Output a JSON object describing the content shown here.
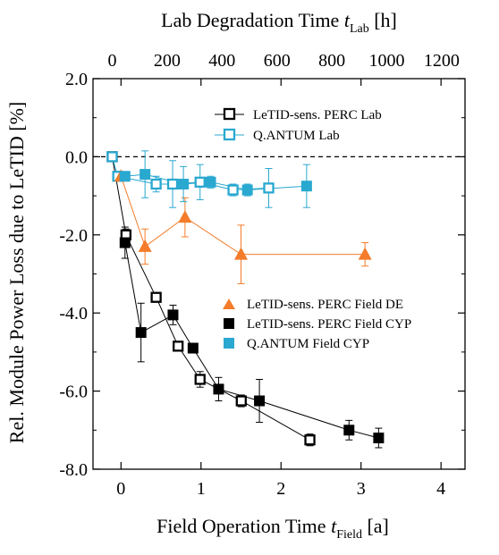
{
  "chart_data": {
    "type": "scatter",
    "title": "",
    "x_bottom": {
      "label_main": "Field Operation Time ",
      "label_var": "t",
      "label_sub": "Field",
      "label_unit": " [a]",
      "range": [
        -0.35,
        4.3
      ],
      "ticks": [
        "0",
        "1",
        "2",
        "3",
        "4"
      ]
    },
    "x_top": {
      "label_main": "Lab Degradation Time ",
      "label_var": "t",
      "label_sub": "Lab",
      "label_unit": " [h]",
      "range": [
        -70,
        1285
      ],
      "ticks": [
        "0",
        "200",
        "400",
        "600",
        "800",
        "1000",
        "1200"
      ]
    },
    "y": {
      "label": "Rel. Module Power Loss due to LeTID [%]",
      "range": [
        -8.0,
        2.0
      ],
      "ticks": [
        "2.0",
        "0.0",
        "-2.0",
        "-4.0",
        "-6.0",
        "-8.0"
      ]
    },
    "reference_line_y": 0.0,
    "series": [
      {
        "name": "LeTID-sens. PERC Lab",
        "axis": "top",
        "marker": "square-open",
        "color": "#000000",
        "points": [
          {
            "x": 0,
            "y": 0.0,
            "err": 0
          },
          {
            "x": 50,
            "y": -2.0,
            "err": 0.15
          },
          {
            "x": 160,
            "y": -3.6,
            "err": 0
          },
          {
            "x": 240,
            "y": -4.85,
            "err": 0.1
          },
          {
            "x": 320,
            "y": -5.7,
            "err": 0.2
          },
          {
            "x": 470,
            "y": -6.25,
            "err": 0.15
          },
          {
            "x": 720,
            "y": -7.25,
            "err": 0.15
          }
        ]
      },
      {
        "name": "Q.ANTUM Lab",
        "axis": "top",
        "marker": "square-open",
        "color": "#29a8d0",
        "points": [
          {
            "x": 0,
            "y": 0.0,
            "err": 0
          },
          {
            "x": 20,
            "y": -0.5,
            "err": 0.1
          },
          {
            "x": 160,
            "y": -0.7,
            "err": 0.2
          },
          {
            "x": 220,
            "y": -0.7,
            "err": 0.6
          },
          {
            "x": 320,
            "y": -0.65,
            "err": 0.45
          },
          {
            "x": 440,
            "y": -0.85,
            "err": 0.15
          },
          {
            "x": 570,
            "y": -0.8,
            "err": 0.5
          }
        ]
      },
      {
        "name": "LeTID-sens. PERC Field DE",
        "axis": "bottom",
        "marker": "triangle-filled",
        "color": "#f47c2a",
        "points": [
          {
            "x": 0.0,
            "y": -0.5,
            "err": 0
          },
          {
            "x": 0.3,
            "y": -2.3,
            "err": 0.45
          },
          {
            "x": 0.8,
            "y": -1.55,
            "err": 0.5
          },
          {
            "x": 1.5,
            "y": -2.5,
            "err": 0.75
          },
          {
            "x": 3.05,
            "y": -2.5,
            "err": 0.3
          }
        ]
      },
      {
        "name": "LeTID-sens. PERC Field CYP",
        "axis": "bottom",
        "marker": "square-filled",
        "color": "#000000",
        "points": [
          {
            "x": 0.05,
            "y": -2.2,
            "err": 0.4
          },
          {
            "x": 0.25,
            "y": -4.5,
            "err": 0.75
          },
          {
            "x": 0.65,
            "y": -4.05,
            "err": 0.25
          },
          {
            "x": 0.9,
            "y": -4.9,
            "err": 0.1
          },
          {
            "x": 1.22,
            "y": -5.95,
            "err": 0.3
          },
          {
            "x": 1.73,
            "y": -6.25,
            "err": 0.55
          },
          {
            "x": 2.85,
            "y": -7.0,
            "err": 0.25
          },
          {
            "x": 3.22,
            "y": -7.2,
            "err": 0.25
          }
        ]
      },
      {
        "name": "Q.ANTUM Field CYP",
        "axis": "bottom",
        "marker": "square-filled",
        "color": "#29a8d0",
        "points": [
          {
            "x": 0.05,
            "y": -0.5,
            "err": 0.1
          },
          {
            "x": 0.3,
            "y": -0.45,
            "err": 0.6
          },
          {
            "x": 0.78,
            "y": -0.7,
            "err": 0.45
          },
          {
            "x": 1.12,
            "y": -0.65,
            "err": 0.15
          },
          {
            "x": 1.58,
            "y": -0.85,
            "err": 0.15
          },
          {
            "x": 2.32,
            "y": -0.75,
            "err": 0.55
          }
        ]
      }
    ],
    "legend": {
      "upper": {
        "placement": "top-right",
        "entries": [
          "LeTID-sens. PERC Lab",
          "Q.ANTUM Lab"
        ]
      },
      "lower": {
        "placement": "middle-right",
        "entries": [
          "LeTID-sens. PERC Field DE",
          "LeTID-sens. PERC Field CYP",
          "Q.ANTUM Field CYP"
        ]
      }
    }
  }
}
